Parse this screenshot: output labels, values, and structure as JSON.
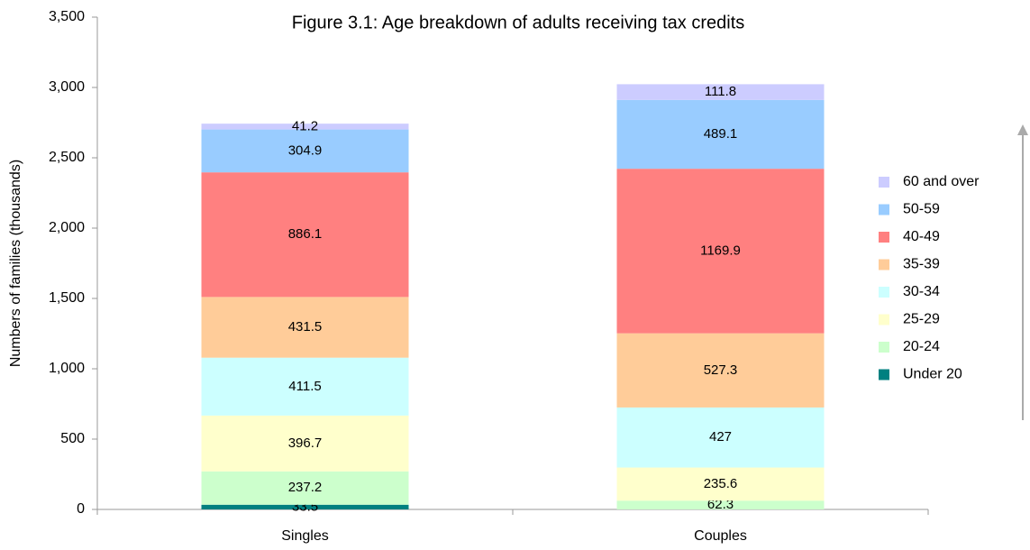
{
  "chart_data": {
    "type": "stacked_bar",
    "title": "Figure 3.1: Age breakdown of adults receiving tax credits",
    "y_label": "Numbers of families (thousands)",
    "categories": [
      "Singles",
      "Couples"
    ],
    "series": [
      {
        "name": "Under 20",
        "color": "#008080",
        "values": [
          33.5,
          null
        ]
      },
      {
        "name": "20-24",
        "color": "#ccffcc",
        "values": [
          237.2,
          62.3
        ]
      },
      {
        "name": "25-29",
        "color": "#ffffcc",
        "values": [
          396.7,
          235.6
        ]
      },
      {
        "name": "30-34",
        "color": "#ccffff",
        "values": [
          411.5,
          427
        ]
      },
      {
        "name": "35-39",
        "color": "#ffcc99",
        "values": [
          431.5,
          527.3
        ]
      },
      {
        "name": "40-49",
        "color": "#ff8080",
        "values": [
          886.1,
          1169.9
        ]
      },
      {
        "name": "50-59",
        "color": "#99ccff",
        "values": [
          304.9,
          489.1
        ]
      },
      {
        "name": "60 and over",
        "color": "#ccccff",
        "values": [
          41.2,
          111.8
        ]
      }
    ],
    "ylim": [
      0,
      3500
    ],
    "yticks": [
      0,
      500,
      {
        "value": 1000,
        "label": "1,000"
      },
      {
        "value": 1500,
        "label": "1,500"
      },
      {
        "value": 2000,
        "label": "2,000"
      },
      {
        "value": 2500,
        "label": "2,500"
      },
      {
        "value": 3000,
        "label": "3,000"
      },
      {
        "value": 3500,
        "label": "3,500"
      }
    ],
    "grid": false,
    "legend": "right"
  }
}
